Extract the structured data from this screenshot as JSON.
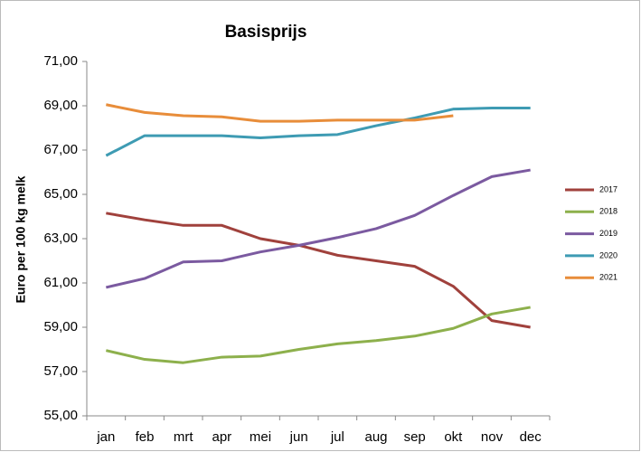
{
  "chart_data": {
    "type": "line",
    "title": "Basisprijs",
    "y_label": "Euro per 100 kg melk",
    "categories": [
      "jan",
      "feb",
      "mrt",
      "apr",
      "mei",
      "jun",
      "jul",
      "aug",
      "sep",
      "okt",
      "nov",
      "dec"
    ],
    "series": [
      {
        "name": "2017",
        "color": "#a0413c",
        "values": [
          64.15,
          63.85,
          63.6,
          63.6,
          63.0,
          62.7,
          62.25,
          62.0,
          61.75,
          60.85,
          59.3,
          59.0
        ]
      },
      {
        "name": "2018",
        "color": "#8db04c",
        "values": [
          57.95,
          57.55,
          57.4,
          57.65,
          57.7,
          58.0,
          58.25,
          58.4,
          58.6,
          58.95,
          59.6,
          59.9
        ]
      },
      {
        "name": "2019",
        "color": "#7b5aa0",
        "values": [
          60.8,
          61.2,
          61.95,
          62.0,
          62.4,
          62.7,
          63.05,
          63.45,
          64.05,
          64.95,
          65.8,
          66.1
        ]
      },
      {
        "name": "2020",
        "color": "#3e9bb3",
        "values": [
          66.75,
          67.65,
          67.65,
          67.65,
          67.55,
          67.65,
          67.7,
          68.1,
          68.45,
          68.85,
          68.9,
          68.9
        ]
      },
      {
        "name": "2021",
        "color": "#e88d3a",
        "values": [
          69.05,
          68.7,
          68.55,
          68.5,
          68.3,
          68.3,
          68.35,
          68.35,
          68.35,
          68.55,
          null,
          null
        ]
      }
    ],
    "ylim": [
      55,
      71
    ],
    "yticks": [
      {
        "value": 55,
        "label": "55,00"
      },
      {
        "value": 57,
        "label": "57,00"
      },
      {
        "value": 59,
        "label": "59,00"
      },
      {
        "value": 61,
        "label": "61,00"
      },
      {
        "value": 63,
        "label": "63,00"
      },
      {
        "value": 65,
        "label": "65,00"
      },
      {
        "value": 67,
        "label": "67,00"
      },
      {
        "value": 69,
        "label": "69,00"
      },
      {
        "value": 71,
        "label": "71,00"
      }
    ],
    "grid": false,
    "legend": "right"
  }
}
